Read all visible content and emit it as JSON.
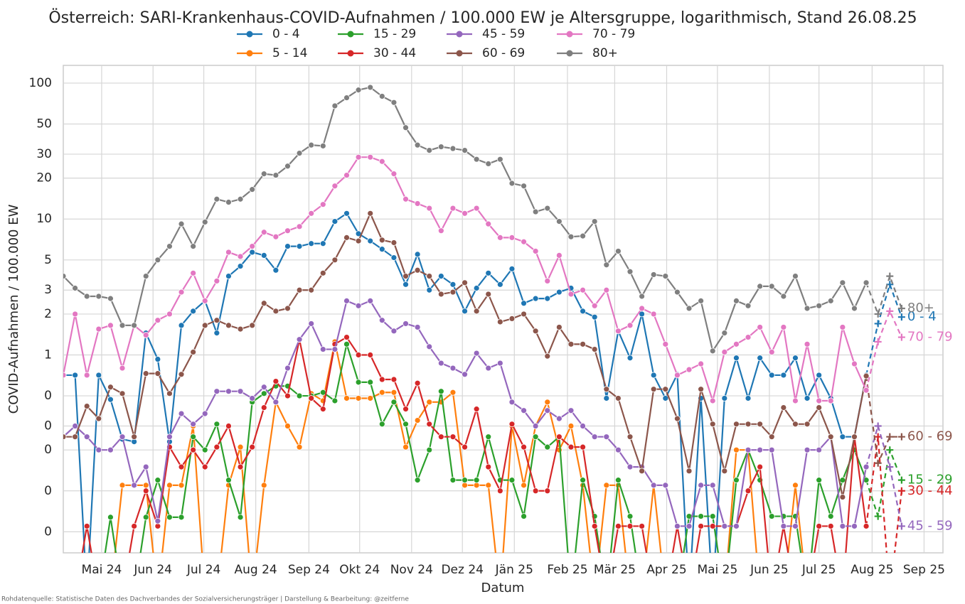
{
  "chart_data": {
    "type": "line",
    "title": "Österreich: SARI-Krankenhaus-COVID-Aufnahmen / 100.000 EW je Altersgruppe, logarithmisch, Stand 26.08.25",
    "xlabel": "Datum",
    "ylabel": "COVID-Aufnahmen / 100.000 EW",
    "source": "Rohdatenquelle: Statistische Daten des Dachverbandes der Sozialversicherungsträger | Darstellung & Bearbeitung: @zeitferne",
    "log_y": true,
    "grid": true,
    "dash_from": 68,
    "x": [
      0,
      1,
      2,
      3,
      4,
      5,
      6,
      7,
      8,
      9,
      10,
      11,
      12,
      13,
      14,
      15,
      16,
      17,
      18,
      19,
      20,
      21,
      22,
      23,
      24,
      25,
      26,
      27,
      28,
      29,
      30,
      31,
      32,
      33,
      34,
      35,
      36,
      37,
      38,
      39,
      40,
      41,
      42,
      43,
      44,
      45,
      46,
      47,
      48,
      49,
      50,
      51,
      52,
      53,
      54,
      55,
      56,
      57,
      58,
      59,
      60,
      61,
      62,
      63,
      64,
      65,
      66,
      67,
      68,
      69,
      70,
      71
    ],
    "xlim": [
      0,
      74.5
    ],
    "xticks": [
      {
        "value": 3.25,
        "label": "Mai 24"
      },
      {
        "value": 7.6,
        "label": "Jun 24"
      },
      {
        "value": 11.9,
        "label": "Jul 24"
      },
      {
        "value": 16.3,
        "label": "Aug 24"
      },
      {
        "value": 20.8,
        "label": "Sep 24"
      },
      {
        "value": 25.1,
        "label": "Okt 24"
      },
      {
        "value": 29.5,
        "label": "Nov 24"
      },
      {
        "value": 33.8,
        "label": "Dez 24"
      },
      {
        "value": 38.2,
        "label": "Jän 25"
      },
      {
        "value": 42.7,
        "label": "Feb 25"
      },
      {
        "value": 46.7,
        "label": "Mär 25"
      },
      {
        "value": 51.1,
        "label": "Apr 25"
      },
      {
        "value": 55.4,
        "label": "Mai 25"
      },
      {
        "value": 59.8,
        "label": "Jun 25"
      },
      {
        "value": 64.0,
        "label": "Jul 25"
      },
      {
        "value": 68.5,
        "label": "Aug 25"
      },
      {
        "value": 72.9,
        "label": "Sep 25"
      }
    ],
    "ylim": [
      0.035,
      135
    ],
    "yticks": [
      100,
      50,
      30,
      20,
      10,
      5,
      3,
      2,
      1,
      {
        "value": 0.5,
        "label": "0"
      },
      {
        "value": 0.3,
        "label": "0"
      },
      {
        "value": 0.2,
        "label": "0"
      },
      {
        "value": 0.1,
        "label": "0"
      },
      {
        "value": 0.05,
        "label": "0"
      }
    ],
    "series": [
      {
        "name": "0 - 4",
        "color": "#1f77b4",
        "values": [
          0.71,
          0.71,
          0,
          0.71,
          0.47,
          0.24,
          0.23,
          1.45,
          0.93,
          0.23,
          1.65,
          2.1,
          2.5,
          1.45,
          3.8,
          4.5,
          5.7,
          5.4,
          4.2,
          6.3,
          6.3,
          6.6,
          6.6,
          9.6,
          11,
          7.8,
          6.9,
          6.0,
          5.2,
          3.3,
          5.5,
          3.0,
          3.8,
          3.3,
          2.1,
          3.1,
          4.0,
          3.3,
          4.3,
          2.4,
          2.6,
          2.6,
          2.9,
          3.1,
          2.1,
          1.9,
          0.48,
          1.5,
          0.95,
          2.0,
          0.71,
          0.48,
          0.72,
          0,
          0.48,
          0,
          0.48,
          0.95,
          0.48,
          0.95,
          0.71,
          0.71,
          0.95,
          0.48,
          0.71,
          0.48,
          0.25,
          0.25,
          0.71,
          1.7,
          3.3,
          1.9
        ]
      },
      {
        "name": "5 - 14",
        "color": "#ff7f0e",
        "values": [
          0,
          0,
          0,
          0,
          0,
          0.11,
          0.11,
          0.11,
          0,
          0.11,
          0.11,
          0.3,
          0,
          0,
          0.11,
          0.21,
          0,
          0.11,
          0.45,
          0.3,
          0.21,
          0.52,
          0.46,
          1.25,
          0.48,
          0.48,
          0.48,
          0.53,
          0.53,
          0.21,
          0.33,
          0.45,
          0.45,
          0.53,
          0.11,
          0.11,
          0.11,
          0,
          0.3,
          0.11,
          0.3,
          0.45,
          0.2,
          0.3,
          0.11,
          0,
          0.11,
          0.11,
          0,
          0,
          0.11,
          0,
          0,
          0,
          0,
          0,
          0,
          0.2,
          0.2,
          0,
          0,
          0,
          0.11,
          0,
          0,
          0,
          0,
          0,
          0,
          null,
          null,
          null
        ]
      },
      {
        "name": "15 - 29",
        "color": "#2ca02c",
        "values": [
          0,
          0,
          0,
          0,
          0.064,
          0,
          0,
          0.064,
          0.12,
          0.064,
          0.064,
          0.25,
          0.2,
          0.31,
          0.12,
          0.064,
          0.45,
          0.52,
          0.59,
          0.59,
          0.5,
          0.5,
          0.53,
          0.46,
          1.2,
          0.63,
          0.63,
          0.31,
          0.45,
          0.31,
          0.12,
          0.2,
          0.54,
          0.12,
          0.12,
          0.12,
          0.25,
          0.12,
          0.12,
          0.065,
          0.25,
          0.21,
          0.25,
          0,
          0.12,
          0.065,
          0,
          0.12,
          0.065,
          0,
          0,
          0,
          0,
          0.065,
          0.065,
          0.065,
          0,
          0.12,
          0.2,
          0.12,
          0.065,
          0.065,
          0.065,
          0,
          0.12,
          0.065,
          0.12,
          0.2,
          0.12,
          0.065,
          0.2,
          0.12
        ]
      },
      {
        "name": "30 - 44",
        "color": "#d62728",
        "values": [
          0,
          0,
          0.055,
          0,
          0,
          0,
          0.055,
          0.1,
          0.055,
          0.21,
          0.15,
          0.2,
          0.15,
          0.21,
          0.3,
          0.15,
          0.21,
          0.41,
          0.64,
          0.5,
          1.3,
          0.48,
          0.4,
          1.2,
          1.35,
          1.0,
          1.0,
          0.66,
          0.66,
          0.4,
          0.62,
          0.31,
          0.25,
          0.25,
          0.21,
          0.4,
          0.15,
          0.1,
          0.31,
          0.21,
          0.1,
          0.1,
          0.25,
          0.21,
          0.21,
          0.055,
          0,
          0.055,
          0.055,
          0.055,
          0,
          0,
          0.055,
          0,
          0.055,
          0.055,
          0.055,
          0.055,
          0.1,
          0.15,
          0,
          0.055,
          0,
          0,
          0.055,
          0.055,
          0,
          0.25,
          0.055,
          0.25,
          0,
          0.1
        ]
      },
      {
        "name": "45 - 59",
        "color": "#9467bd",
        "values": [
          0.25,
          0.3,
          0.25,
          0.2,
          0.2,
          0.25,
          0.11,
          0.15,
          0.06,
          0.25,
          0.37,
          0.31,
          0.37,
          0.54,
          0.54,
          0.54,
          0.48,
          0.58,
          0.45,
          0.8,
          1.3,
          1.7,
          1.1,
          1.1,
          2.5,
          2.3,
          2.5,
          1.8,
          1.5,
          1.7,
          1.6,
          1.15,
          0.87,
          0.8,
          0.72,
          1.03,
          0.8,
          0.87,
          0.45,
          0.39,
          0.3,
          0.39,
          0.34,
          0.39,
          0.3,
          0.25,
          0.25,
          0.2,
          0.15,
          0.15,
          0.11,
          0.11,
          0.055,
          0.055,
          0.11,
          0.11,
          0.055,
          0.055,
          0.2,
          0.2,
          0.2,
          0.055,
          0.055,
          0.2,
          0.2,
          0.25,
          0.055,
          0.055,
          0.15,
          0.3,
          0.15,
          0.055
        ]
      },
      {
        "name": "60 - 69",
        "color": "#8c564b",
        "values": [
          0.25,
          0.25,
          0.42,
          0.34,
          0.58,
          0.52,
          0.25,
          0.73,
          0.73,
          0.52,
          0.72,
          1.05,
          1.65,
          1.8,
          1.65,
          1.55,
          1.65,
          2.4,
          2.1,
          2.2,
          3.0,
          3.0,
          4.0,
          5.0,
          7.3,
          6.9,
          11,
          7.0,
          6.7,
          3.8,
          4.2,
          3.8,
          2.8,
          2.9,
          3.4,
          2.1,
          2.8,
          1.75,
          1.85,
          2.0,
          1.5,
          0.98,
          1.6,
          1.2,
          1.2,
          1.1,
          0.56,
          0.48,
          0.25,
          0.14,
          0.56,
          0.56,
          0.34,
          0.14,
          0.56,
          0.31,
          0.14,
          0.31,
          0.31,
          0.31,
          0.25,
          0.41,
          0.31,
          0.31,
          0.41,
          0.25,
          0.09,
          0.25,
          0.7,
          0.16,
          0.25,
          0.25
        ]
      },
      {
        "name": "70 - 79",
        "color": "#e377c2",
        "values": [
          0.71,
          2.0,
          0.71,
          1.55,
          1.65,
          0.8,
          1.65,
          1.4,
          1.8,
          2.0,
          2.9,
          4.0,
          2.5,
          3.5,
          5.7,
          5.3,
          6.3,
          8.0,
          7.4,
          8.2,
          8.8,
          11,
          12.8,
          17.5,
          21,
          28.5,
          28.5,
          26.5,
          21.5,
          14,
          13,
          12,
          8.2,
          12,
          11,
          12,
          9.2,
          7.3,
          7.3,
          6.8,
          5.8,
          3.5,
          5.4,
          2.8,
          3.0,
          2.3,
          3.0,
          1.5,
          1.65,
          2.2,
          2.0,
          1.2,
          0.71,
          0.78,
          0.86,
          0.46,
          1.05,
          1.2,
          1.35,
          1.6,
          1.05,
          1.6,
          0.46,
          1.2,
          0.46,
          0.46,
          1.6,
          0.86,
          0.55,
          1.25,
          2.1,
          1.35
        ]
      },
      {
        "name": "80+",
        "color": "#7f7f7f",
        "values": [
          3.8,
          3.1,
          2.7,
          2.7,
          2.6,
          1.65,
          1.65,
          3.8,
          5.0,
          6.3,
          9.2,
          6.3,
          9.5,
          14,
          13.3,
          14,
          16.5,
          21.5,
          21,
          24.5,
          30.5,
          35,
          34.5,
          68,
          78,
          89,
          93,
          80,
          72,
          47,
          35,
          32,
          34,
          33,
          32,
          27.5,
          25.5,
          27.5,
          18.3,
          17.5,
          11.3,
          12,
          9.6,
          7.4,
          7.5,
          9.6,
          4.6,
          5.8,
          4.1,
          2.7,
          3.9,
          3.8,
          2.9,
          2.2,
          2.5,
          1.07,
          1.45,
          2.5,
          2.3,
          3.2,
          3.2,
          2.7,
          3.8,
          2.2,
          2.3,
          2.5,
          3.4,
          2.2,
          3.4,
          2.0,
          3.8,
          2.2
        ]
      }
    ]
  }
}
